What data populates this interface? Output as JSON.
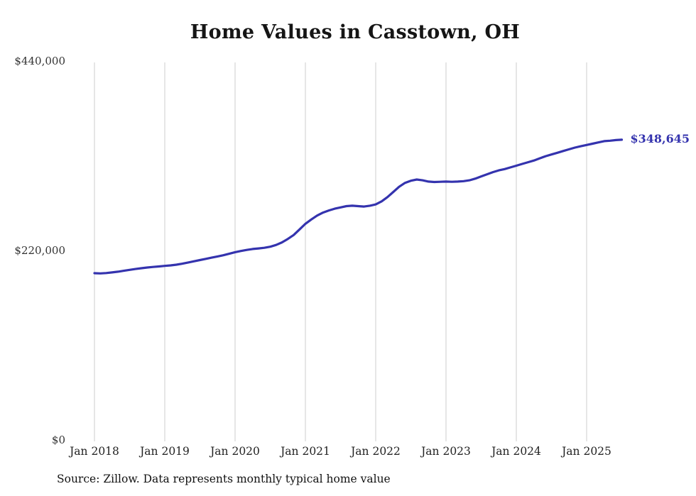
{
  "page": {
    "title": "Home Values in Casstown, OH",
    "annotation_label": "$348,645",
    "source_note": "Source: Zillow. Data represents monthly typical home value"
  },
  "colors": {
    "line": "#3433ae",
    "annotation": "#3433ae",
    "grid": "#cccccc",
    "title_text": "#151515",
    "tick_text": "#333333"
  },
  "chart_data": {
    "type": "line",
    "title": "Home Values in Casstown, OH",
    "xlabel": "",
    "ylabel": "",
    "x_start": "2018-01",
    "x_end": "2025-07",
    "x_frequency": "monthly",
    "x_tick_labels": [
      "Jan 2018",
      "Jan 2019",
      "Jan 2020",
      "Jan 2021",
      "Jan 2022",
      "Jan 2023",
      "Jan 2024",
      "Jan 2025"
    ],
    "y_tick_labels": [
      "$0",
      "$220,000",
      "$440,000"
    ],
    "y_tick_values": [
      0,
      220000,
      440000
    ],
    "ylim": [
      0,
      440000
    ],
    "grid": "vertical-only",
    "legend": "none",
    "annotation": "$348,645",
    "source": "Source: Zillow. Data represents monthly typical home value",
    "series": [
      {
        "name": "Typical home value",
        "values": [
          193600,
          193400,
          193800,
          194500,
          195400,
          196400,
          197500,
          198500,
          199400,
          200200,
          200900,
          201500,
          202100,
          202700,
          203500,
          204700,
          206100,
          207500,
          208900,
          210300,
          211700,
          213100,
          214500,
          216200,
          218000,
          219400,
          220700,
          221700,
          222400,
          223100,
          224400,
          226400,
          229400,
          233400,
          238000,
          244500,
          251000,
          256000,
          260500,
          264000,
          266500,
          268500,
          270000,
          271500,
          272000,
          271500,
          271000,
          272000,
          273500,
          277000,
          282000,
          288000,
          294000,
          298500,
          301000,
          302400,
          301500,
          300000,
          299500,
          299800,
          300000,
          299800,
          300000,
          300500,
          301500,
          303500,
          306000,
          308500,
          311000,
          313000,
          314500,
          316500,
          318500,
          320500,
          322500,
          324500,
          327000,
          329500,
          331500,
          333500,
          335500,
          337500,
          339500,
          341000,
          342500,
          344000,
          345500,
          347000,
          347500,
          348200,
          348645
        ]
      }
    ]
  }
}
